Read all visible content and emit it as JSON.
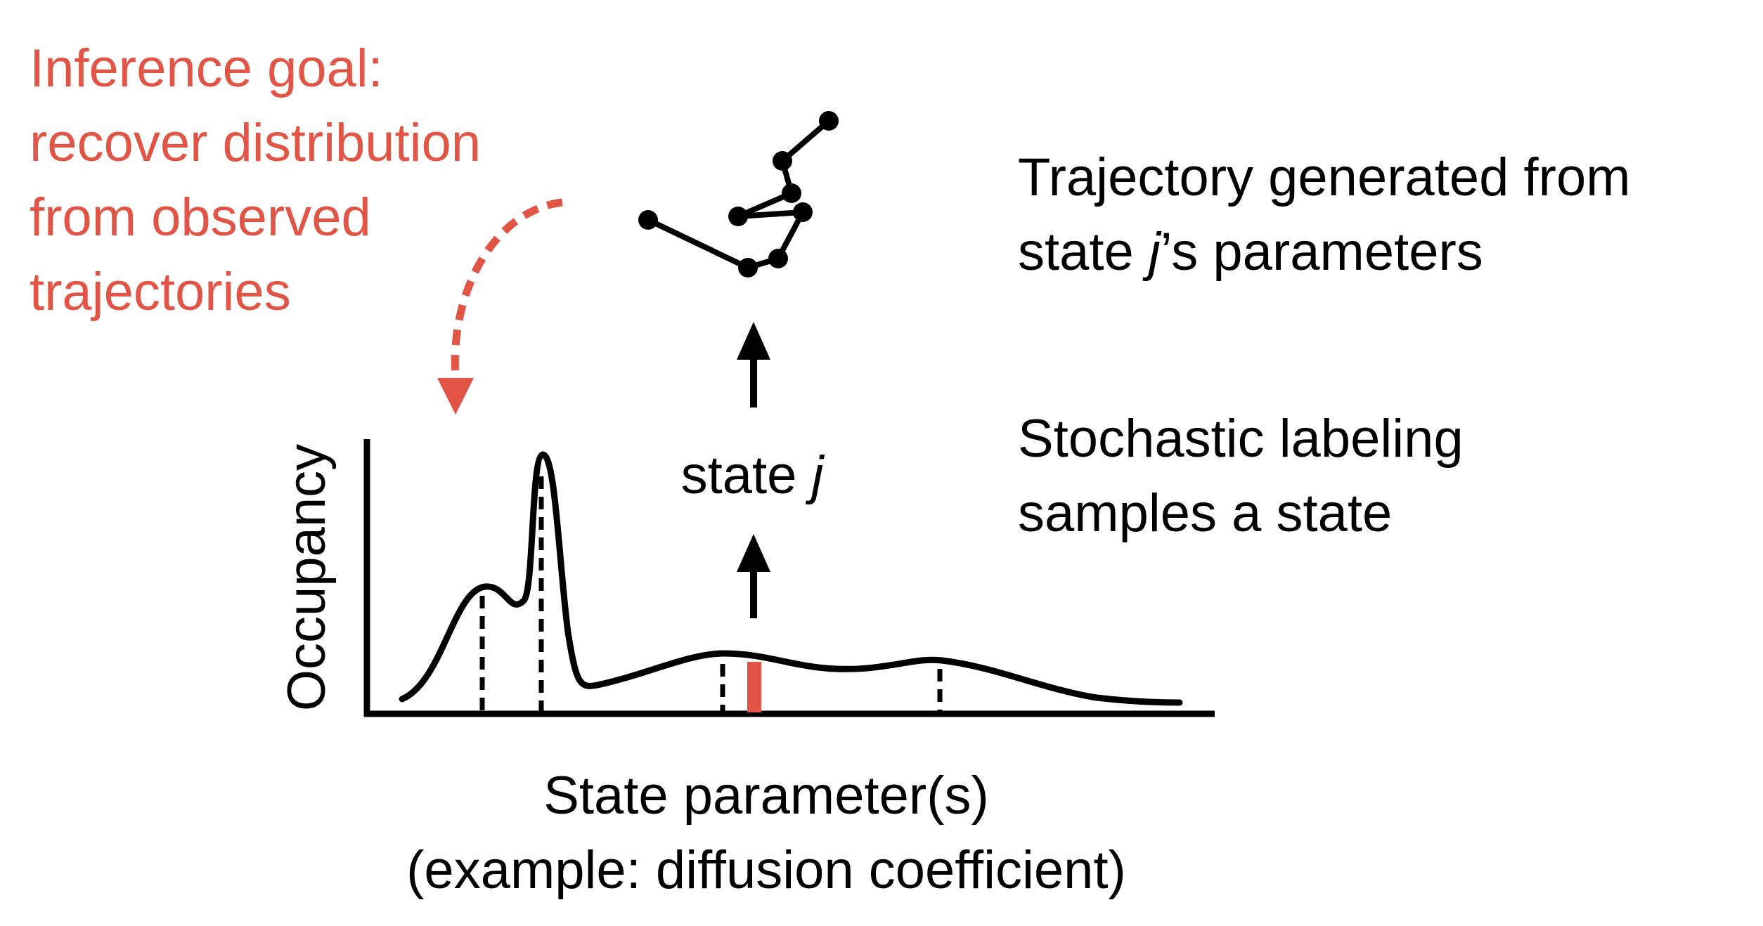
{
  "colors": {
    "accent": "#e05546",
    "ink": "#000000",
    "background": "#ffffff"
  },
  "inference_goal": {
    "lines": [
      "Inference goal:",
      "recover distribution",
      "from observed",
      "trajectories"
    ]
  },
  "trajectory_caption": {
    "line1": "Trajectory generated from",
    "line2_prefix": "state ",
    "line2_var": "j",
    "line2_suffix": "’s parameters"
  },
  "labeling_caption": {
    "line1": "Stochastic labeling",
    "line2": "samples a state"
  },
  "state_label": {
    "prefix": "state ",
    "var": "j"
  },
  "axes": {
    "ylabel": "Occupancy",
    "xlabel": "State parameter(s)",
    "xlabel_note": "(example: diffusion coefficient)"
  },
  "icons": [
    "arrow-up-icon",
    "curved-dashed-arrow-icon"
  ]
}
